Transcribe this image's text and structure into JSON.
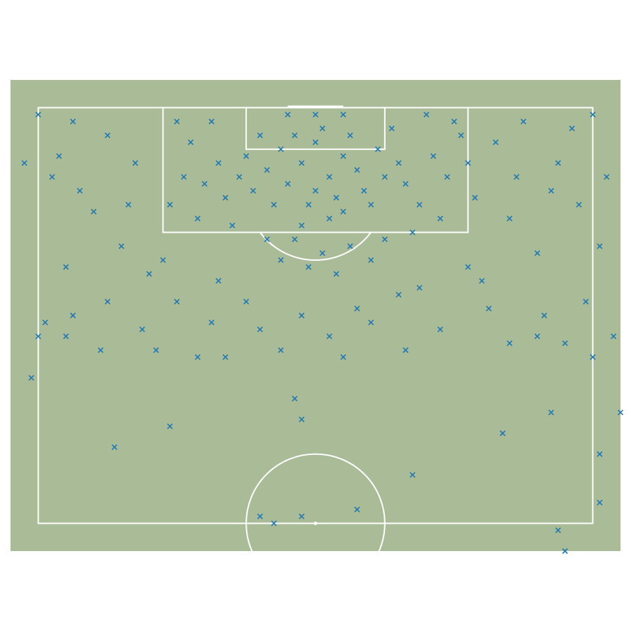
{
  "chart_data": {
    "type": "scatter",
    "marker": "x",
    "color": "#1f77b4",
    "background": "#aabb97",
    "line_color": "#ffffff",
    "xlim": [
      -4,
      84
    ],
    "ylim": [
      56,
      124
    ],
    "x": [
      40,
      38,
      42,
      44,
      36,
      46,
      41,
      39,
      43,
      35,
      47,
      33,
      49,
      37,
      45,
      40,
      42,
      38,
      44,
      31,
      50,
      34,
      48,
      30,
      52,
      36,
      44,
      40,
      32,
      51,
      29,
      53,
      27,
      55,
      26,
      57,
      24,
      59,
      22,
      61,
      23,
      58,
      28,
      54,
      37,
      45,
      41,
      35,
      48,
      39,
      43,
      33,
      50,
      20,
      21,
      19,
      60,
      62,
      63,
      25,
      56,
      14,
      10,
      5,
      2,
      8,
      12,
      16,
      66,
      70,
      75,
      78,
      68,
      72,
      64,
      0,
      80,
      3,
      77,
      82,
      -2,
      6,
      74,
      13,
      69,
      18,
      62,
      30,
      38,
      46,
      52,
      26,
      55,
      32,
      42,
      48,
      35,
      44,
      25,
      58,
      20,
      65,
      10,
      5,
      73,
      76,
      79,
      9,
      1,
      83,
      4,
      81,
      15,
      68,
      27,
      53,
      37,
      38,
      19,
      11,
      54,
      67,
      74,
      84,
      81,
      32,
      34,
      38,
      46,
      75,
      76,
      81,
      0,
      -1,
      80,
      72,
      23,
      17,
      4
    ],
    "values": [
      115,
      112,
      110,
      113,
      109,
      111,
      117,
      106,
      107,
      114,
      108,
      111,
      114,
      116,
      116,
      108,
      104,
      103,
      105,
      108,
      110,
      106,
      106,
      113,
      112,
      119,
      119,
      119,
      116,
      117,
      110,
      109,
      107,
      106,
      112,
      113,
      109,
      110,
      115,
      116,
      104,
      104,
      103,
      102,
      101,
      100,
      99,
      98,
      98,
      97,
      96,
      101,
      101,
      118,
      110,
      106,
      118,
      112,
      107,
      118,
      119,
      112,
      116,
      118,
      110,
      105,
      100,
      96,
      115,
      118,
      112,
      106,
      104,
      99,
      95,
      119,
      119,
      113,
      117,
      110,
      112,
      108,
      108,
      106,
      110,
      98,
      97,
      92,
      90,
      91,
      93,
      95,
      94,
      88,
      87,
      89,
      85,
      84,
      89,
      88,
      92,
      91,
      92,
      90,
      90,
      86,
      92,
      85,
      89,
      87,
      97,
      100,
      88,
      86,
      84,
      85,
      78,
      75,
      74,
      71,
      67,
      73,
      76,
      76,
      70,
      61,
      60,
      61,
      62,
      59,
      56,
      63,
      87,
      81,
      84,
      87,
      84,
      85,
      87
    ]
  }
}
